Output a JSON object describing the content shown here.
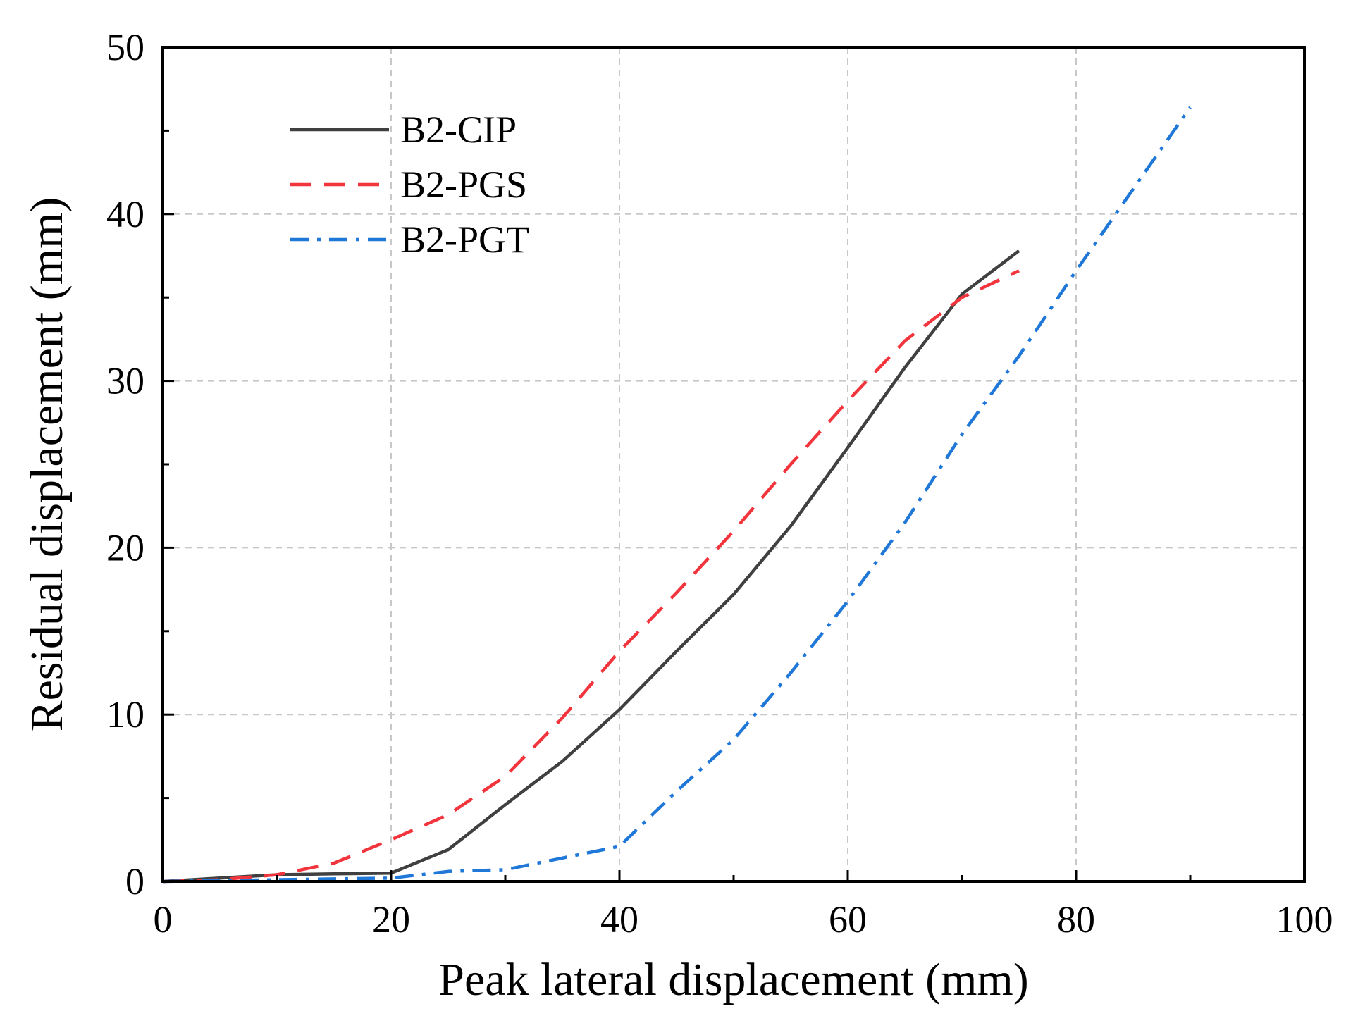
{
  "chart_data": {
    "type": "line",
    "title": "",
    "xlabel": "Peak lateral displacement (mm)",
    "ylabel": "Residual displacement (mm)",
    "xlim": [
      0,
      100
    ],
    "ylim": [
      0,
      50
    ],
    "x_ticks": [
      0,
      20,
      40,
      60,
      80,
      100
    ],
    "y_ticks": [
      0,
      10,
      20,
      30,
      40,
      50
    ],
    "x_tick_labels": [
      "0",
      "20",
      "40",
      "60",
      "80",
      "100"
    ],
    "y_tick_labels": [
      "0",
      "10",
      "20",
      "30",
      "40",
      "50"
    ],
    "grid": true,
    "legend_position": "top-left",
    "series": [
      {
        "name": "B2-CIP",
        "color": "#404040",
        "style": "solid",
        "x": [
          0,
          5,
          10,
          15,
          20,
          25,
          30,
          35,
          40,
          45,
          50,
          55,
          60,
          65,
          70,
          75
        ],
        "y": [
          0,
          0.2,
          0.4,
          0.45,
          0.5,
          1.9,
          4.6,
          7.2,
          10.3,
          13.8,
          17.2,
          21.3,
          26.0,
          30.8,
          35.2,
          37.8
        ]
      },
      {
        "name": "B2-PGS",
        "color": "#f2343c",
        "style": "dashed",
        "x": [
          0,
          5,
          10,
          15,
          20,
          25,
          30,
          35,
          40,
          45,
          50,
          55,
          60,
          65,
          70,
          75
        ],
        "y": [
          0,
          0.1,
          0.4,
          1.1,
          2.5,
          4.0,
          6.3,
          9.8,
          13.8,
          17.3,
          21.0,
          25.0,
          28.8,
          32.4,
          35.0,
          36.6
        ]
      },
      {
        "name": "B2-PGT",
        "color": "#1f77d8",
        "style": "dashdot",
        "x": [
          0,
          5,
          10,
          15,
          20,
          25,
          30,
          35,
          40,
          45,
          50,
          55,
          60,
          65,
          70,
          75,
          80,
          85,
          90
        ],
        "y": [
          0,
          0.05,
          0.1,
          0.15,
          0.2,
          0.6,
          0.7,
          1.4,
          2.1,
          5.4,
          8.5,
          12.5,
          16.8,
          21.5,
          26.8,
          31.5,
          36.6,
          41.5,
          46.4
        ]
      }
    ]
  }
}
